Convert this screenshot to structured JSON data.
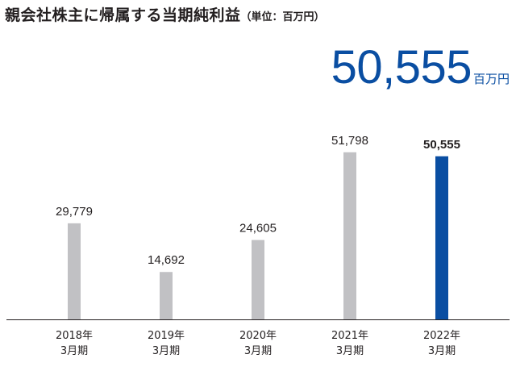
{
  "header": {
    "title": "親会社株主に帰属する当期純利益",
    "unit_note": "（単位：百万円）"
  },
  "highlight": {
    "value": "50,555",
    "unit": "百万円"
  },
  "colors": {
    "bar": "#c1c1c4",
    "bar_highlight": "#0a4ea2",
    "axis": "#231f20"
  },
  "chart_data": {
    "type": "bar",
    "categories": [
      [
        "2018年",
        "3月期"
      ],
      [
        "2019年",
        "3月期"
      ],
      [
        "2020年",
        "3月期"
      ],
      [
        "2021年",
        "3月期"
      ],
      [
        "2022年",
        "3月期"
      ]
    ],
    "values": [
      29779,
      14692,
      24605,
      51798,
      50555
    ],
    "value_labels": [
      "29,779",
      "14,692",
      "24,605",
      "51,798",
      "50,555"
    ],
    "highlight_index": 4,
    "ylim": [
      0,
      80000
    ],
    "grid": false,
    "title": "親会社株主に帰属する当期純利益",
    "xlabel": "",
    "ylabel": ""
  }
}
